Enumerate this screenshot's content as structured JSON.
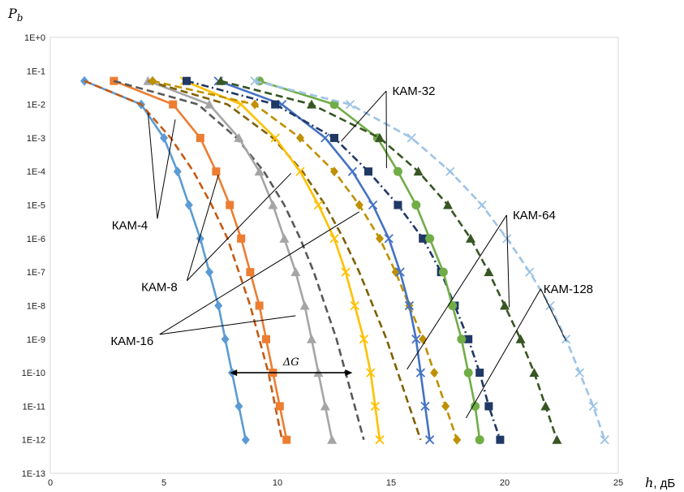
{
  "chart_data": {
    "type": "line",
    "ylabel": "P_b",
    "ylabel_main": "P",
    "ylabel_sub": "b",
    "xlabel": "h, дБ",
    "xlabel_var": "h",
    "xlabel_unit": ", дБ",
    "xlim": [
      0,
      25
    ],
    "ylim_exp": [
      -13,
      0
    ],
    "y_scale": "log",
    "grid": true,
    "x_ticks": [
      "0",
      "5",
      "10",
      "15",
      "20",
      "25"
    ],
    "y_ticks": [
      "1E+0",
      "1E-1",
      "1E-2",
      "1E-3",
      "1E-4",
      "1E-5",
      "1E-6",
      "1E-7",
      "1E-8",
      "1E-9",
      "1E-10",
      "1E-11",
      "1E-12",
      "1E-13"
    ],
    "series": [
      {
        "group": "КАМ-4",
        "color": "#5b9bd5",
        "dash": "solid",
        "marker": "diamond",
        "points": [
          [
            1.5,
            -1.3
          ],
          [
            4,
            -2
          ],
          [
            5,
            -3
          ],
          [
            5.6,
            -4
          ],
          [
            6.1,
            -5
          ],
          [
            6.6,
            -6
          ],
          [
            7,
            -7
          ],
          [
            7.4,
            -8
          ],
          [
            7.7,
            -9
          ],
          [
            8,
            -10
          ],
          [
            8.3,
            -11
          ],
          [
            8.6,
            -12
          ]
        ]
      },
      {
        "group": "КАМ-4",
        "color": "#c55a11",
        "dash": "dashed",
        "marker": "none",
        "points": [
          [
            1.5,
            -1.3
          ],
          [
            4,
            -2
          ],
          [
            5.3,
            -3
          ],
          [
            6.3,
            -4
          ],
          [
            7.1,
            -5
          ],
          [
            7.8,
            -6
          ],
          [
            8.3,
            -7
          ],
          [
            8.8,
            -8
          ],
          [
            9.2,
            -9
          ],
          [
            9.6,
            -10
          ],
          [
            9.9,
            -11
          ],
          [
            10.2,
            -12
          ]
        ]
      },
      {
        "group": "КАМ-8",
        "color": "#ed7d31",
        "dash": "solid",
        "marker": "square",
        "points": [
          [
            2.8,
            -1.3
          ],
          [
            5.4,
            -2
          ],
          [
            6.6,
            -3
          ],
          [
            7.3,
            -4
          ],
          [
            7.9,
            -5
          ],
          [
            8.4,
            -6
          ],
          [
            8.8,
            -7
          ],
          [
            9.2,
            -8
          ],
          [
            9.5,
            -9
          ],
          [
            9.8,
            -10
          ],
          [
            10.1,
            -11
          ],
          [
            10.4,
            -12
          ]
        ]
      },
      {
        "group": "КАМ-8",
        "color": "#595959",
        "dash": "dashed",
        "marker": "none",
        "points": [
          [
            2.8,
            -1.3
          ],
          [
            6.5,
            -2
          ],
          [
            8.2,
            -3
          ],
          [
            9.4,
            -4
          ],
          [
            10.3,
            -5
          ],
          [
            11,
            -6
          ],
          [
            11.6,
            -7
          ],
          [
            12.1,
            -8
          ],
          [
            12.6,
            -9
          ],
          [
            13,
            -10
          ],
          [
            13.4,
            -11
          ],
          [
            13.8,
            -12
          ]
        ]
      },
      {
        "group": "КАМ-16",
        "color": "#a5a5a5",
        "dash": "solid",
        "marker": "triangle",
        "points": [
          [
            4.3,
            -1.3
          ],
          [
            7,
            -2
          ],
          [
            8.3,
            -3
          ],
          [
            9.2,
            -4
          ],
          [
            9.8,
            -5
          ],
          [
            10.3,
            -6
          ],
          [
            10.8,
            -7
          ],
          [
            11.2,
            -8
          ],
          [
            11.5,
            -9
          ],
          [
            11.8,
            -10
          ],
          [
            12.1,
            -11
          ],
          [
            12.4,
            -12
          ]
        ]
      },
      {
        "group": "КАМ-16",
        "color": "#7f6000",
        "dash": "dashed",
        "marker": "none",
        "points": [
          [
            4.3,
            -1.3
          ],
          [
            7.8,
            -2
          ],
          [
            9.8,
            -3
          ],
          [
            11.1,
            -4
          ],
          [
            12.1,
            -5
          ],
          [
            12.9,
            -6
          ],
          [
            13.6,
            -7
          ],
          [
            14.2,
            -8
          ],
          [
            14.8,
            -9
          ],
          [
            15.3,
            -10
          ],
          [
            15.8,
            -11
          ],
          [
            16.3,
            -12
          ]
        ]
      },
      {
        "group": "КАМ-32",
        "color": "#ffc000",
        "dash": "solid",
        "marker": "x",
        "points": [
          [
            5.9,
            -1.3
          ],
          [
            8.4,
            -2
          ],
          [
            9.9,
            -3
          ],
          [
            11,
            -4
          ],
          [
            11.8,
            -5
          ],
          [
            12.5,
            -6
          ],
          [
            13,
            -7
          ],
          [
            13.4,
            -8
          ],
          [
            13.8,
            -9
          ],
          [
            14.1,
            -10
          ],
          [
            14.3,
            -11
          ],
          [
            14.5,
            -12
          ]
        ]
      },
      {
        "group": "КАМ-32",
        "color": "#bf9000",
        "dash": "dashed",
        "marker": "diamond",
        "points": [
          [
            4.5,
            -1.3
          ],
          [
            9,
            -2
          ],
          [
            11,
            -3
          ],
          [
            12.5,
            -4
          ],
          [
            13.6,
            -5
          ],
          [
            14.5,
            -6
          ],
          [
            15.2,
            -7
          ],
          [
            15.8,
            -8
          ],
          [
            16.4,
            -9
          ],
          [
            16.9,
            -10
          ],
          [
            17.4,
            -11
          ],
          [
            17.9,
            -12
          ]
        ]
      },
      {
        "group": "КАМ-64",
        "color": "#4472c4",
        "dash": "solid",
        "marker": "x",
        "points": [
          [
            7.4,
            -1.3
          ],
          [
            10.2,
            -2
          ],
          [
            12.1,
            -3
          ],
          [
            13.3,
            -4
          ],
          [
            14.2,
            -5
          ],
          [
            14.9,
            -6
          ],
          [
            15.4,
            -7
          ],
          [
            15.8,
            -8
          ],
          [
            16.1,
            -9
          ],
          [
            16.3,
            -10
          ],
          [
            16.5,
            -11
          ],
          [
            16.7,
            -12
          ]
        ]
      },
      {
        "group": "КАМ-64",
        "color": "#203864",
        "dash": "dashdot",
        "marker": "square",
        "points": [
          [
            6,
            -1.3
          ],
          [
            9.9,
            -2
          ],
          [
            12.5,
            -3
          ],
          [
            14,
            -4
          ],
          [
            15.3,
            -5
          ],
          [
            16.4,
            -6
          ],
          [
            17.2,
            -7
          ],
          [
            17.8,
            -8
          ],
          [
            18.4,
            -9
          ],
          [
            18.9,
            -10
          ],
          [
            19.3,
            -11
          ],
          [
            19.8,
            -12
          ]
        ]
      },
      {
        "group": "КАМ-128",
        "color": "#70ad47",
        "dash": "solid",
        "marker": "circle",
        "points": [
          [
            9.2,
            -1.3
          ],
          [
            12.5,
            -2
          ],
          [
            14.4,
            -3
          ],
          [
            15.3,
            -4
          ],
          [
            16.1,
            -5
          ],
          [
            16.7,
            -6
          ],
          [
            17.3,
            -7
          ],
          [
            17.7,
            -8
          ],
          [
            18.1,
            -9
          ],
          [
            18.4,
            -10
          ],
          [
            18.7,
            -11
          ],
          [
            18.9,
            -12
          ]
        ]
      },
      {
        "group": "КАМ-128",
        "color": "#375623",
        "dash": "dashed",
        "marker": "triangle",
        "points": [
          [
            7.5,
            -1.3
          ],
          [
            11.5,
            -2
          ],
          [
            14.5,
            -3
          ],
          [
            16.2,
            -4
          ],
          [
            17.5,
            -5
          ],
          [
            18.5,
            -6
          ],
          [
            19.3,
            -7
          ],
          [
            20,
            -8
          ],
          [
            20.7,
            -9
          ],
          [
            21.3,
            -10
          ],
          [
            21.8,
            -11
          ],
          [
            22.3,
            -12
          ]
        ]
      },
      {
        "group": "КАМ-128",
        "color": "#9dc3e6",
        "dash": "dashed",
        "marker": "x",
        "points": [
          [
            9,
            -1.3
          ],
          [
            13.2,
            -2
          ],
          [
            15.9,
            -3
          ],
          [
            17.6,
            -4
          ],
          [
            19,
            -5
          ],
          [
            20.1,
            -6
          ],
          [
            21.1,
            -7
          ],
          [
            22,
            -8
          ],
          [
            22.7,
            -9
          ],
          [
            23.3,
            -10
          ],
          [
            23.9,
            -11
          ],
          [
            24.4,
            -12
          ]
        ]
      }
    ],
    "annotations": [
      {
        "text": "КАМ-4",
        "label_at": [
          3.5,
          -5.6
        ],
        "targets": [
          [
            4.3,
            -2.25
          ],
          [
            5.5,
            -2.45
          ]
        ]
      },
      {
        "text": "КАМ-8",
        "label_at": [
          4.8,
          -7.45
        ],
        "targets": [
          [
            7.4,
            -4.1
          ],
          [
            10.6,
            -4.05
          ]
        ]
      },
      {
        "text": "КАМ-16",
        "label_at": [
          3.6,
          -9.05
        ],
        "targets": [
          [
            13.6,
            -5.2
          ],
          [
            10.8,
            -8.3
          ]
        ]
      },
      {
        "text": "КАМ-32",
        "label_at": [
          16,
          -1.6
        ],
        "targets": [
          [
            12.8,
            -3.1
          ],
          [
            14.8,
            -3.9
          ]
        ]
      },
      {
        "text": "КАМ-64",
        "label_at": [
          21.3,
          -5.3
        ],
        "targets": [
          [
            15.7,
            -9.9
          ],
          [
            20.2,
            -8.05
          ]
        ]
      },
      {
        "text": "КАМ-128",
        "label_at": [
          22.8,
          -7.5
        ],
        "targets": [
          [
            22.7,
            -9.05
          ],
          [
            18.3,
            -11.35
          ]
        ]
      }
    ],
    "delta_g": {
      "text": "ΔG",
      "x_from": 7.9,
      "x_to": 13.3,
      "y_exp": -10
    }
  }
}
